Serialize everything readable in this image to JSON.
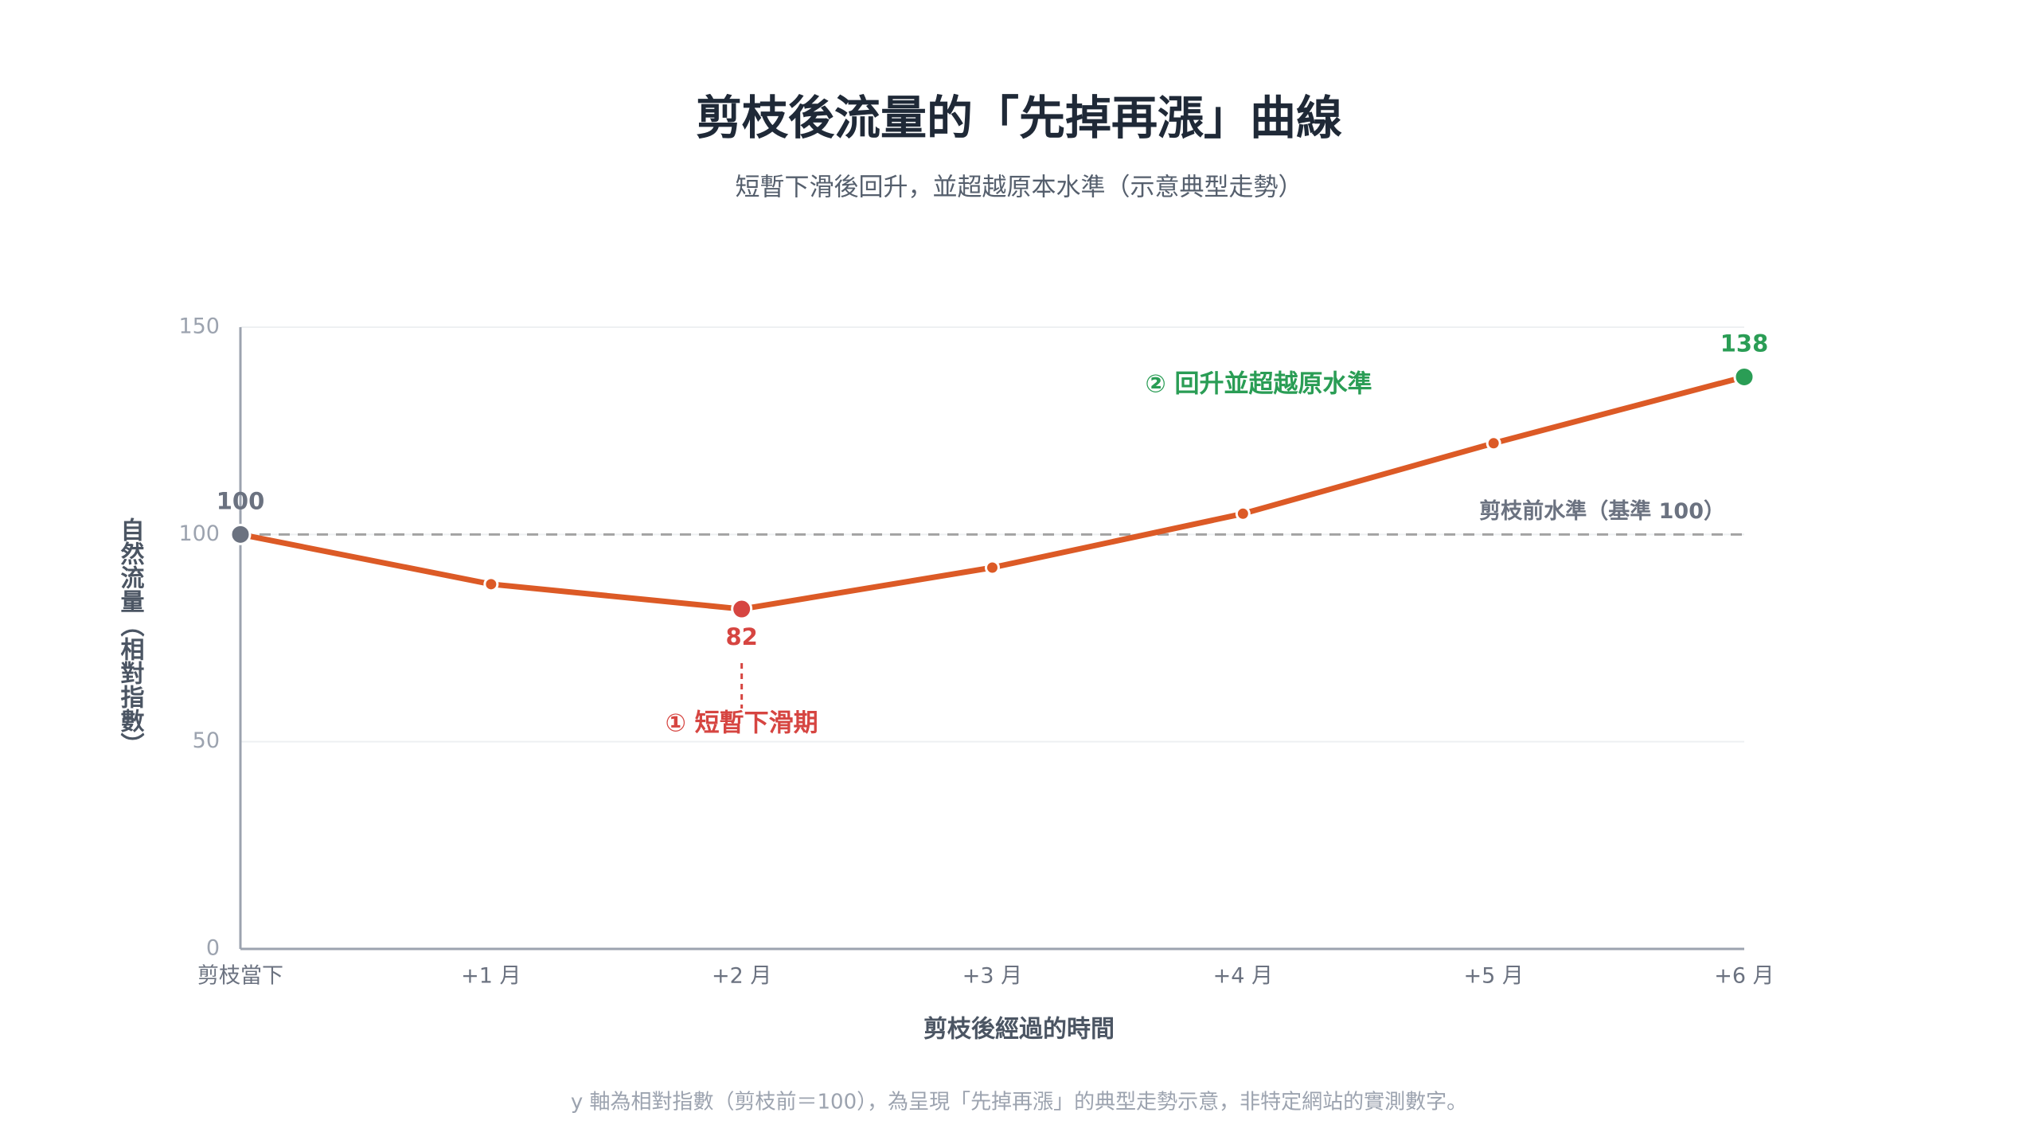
{
  "chart_data": {
    "type": "line",
    "title": "剪枝後流量的「先掉再漲」曲線",
    "subtitle": "短暫下滑後回升，並超越原本水準（示意典型走勢）",
    "x_label": "剪枝後經過的時間",
    "y_label": "自然流量（相對指數）",
    "footnote": "y 軸為相對指數（剪枝前＝100），為呈現「先掉再漲」的典型走勢示意，非特定網站的實測數字。",
    "categories": [
      "剪枝當下",
      "+1 月",
      "+2 月",
      "+3 月",
      "+4 月",
      "+5 月",
      "+6 月"
    ],
    "series": [
      {
        "name": "自然流量",
        "color": "#dc5a26",
        "values": [
          100,
          88,
          82,
          92,
          105,
          122,
          138
        ]
      }
    ],
    "ylim": [
      0,
      150
    ],
    "yticks": [
      0,
      50,
      100,
      150
    ],
    "grid": true,
    "reference_line": {
      "value": 100,
      "label": "剪枝前水準（基準 100）"
    },
    "annotations": [
      {
        "text": "① 短暫下滑期",
        "color": "#d64541"
      },
      {
        "text": "② 回升並超越原水準",
        "color": "#2a9d55"
      }
    ]
  }
}
